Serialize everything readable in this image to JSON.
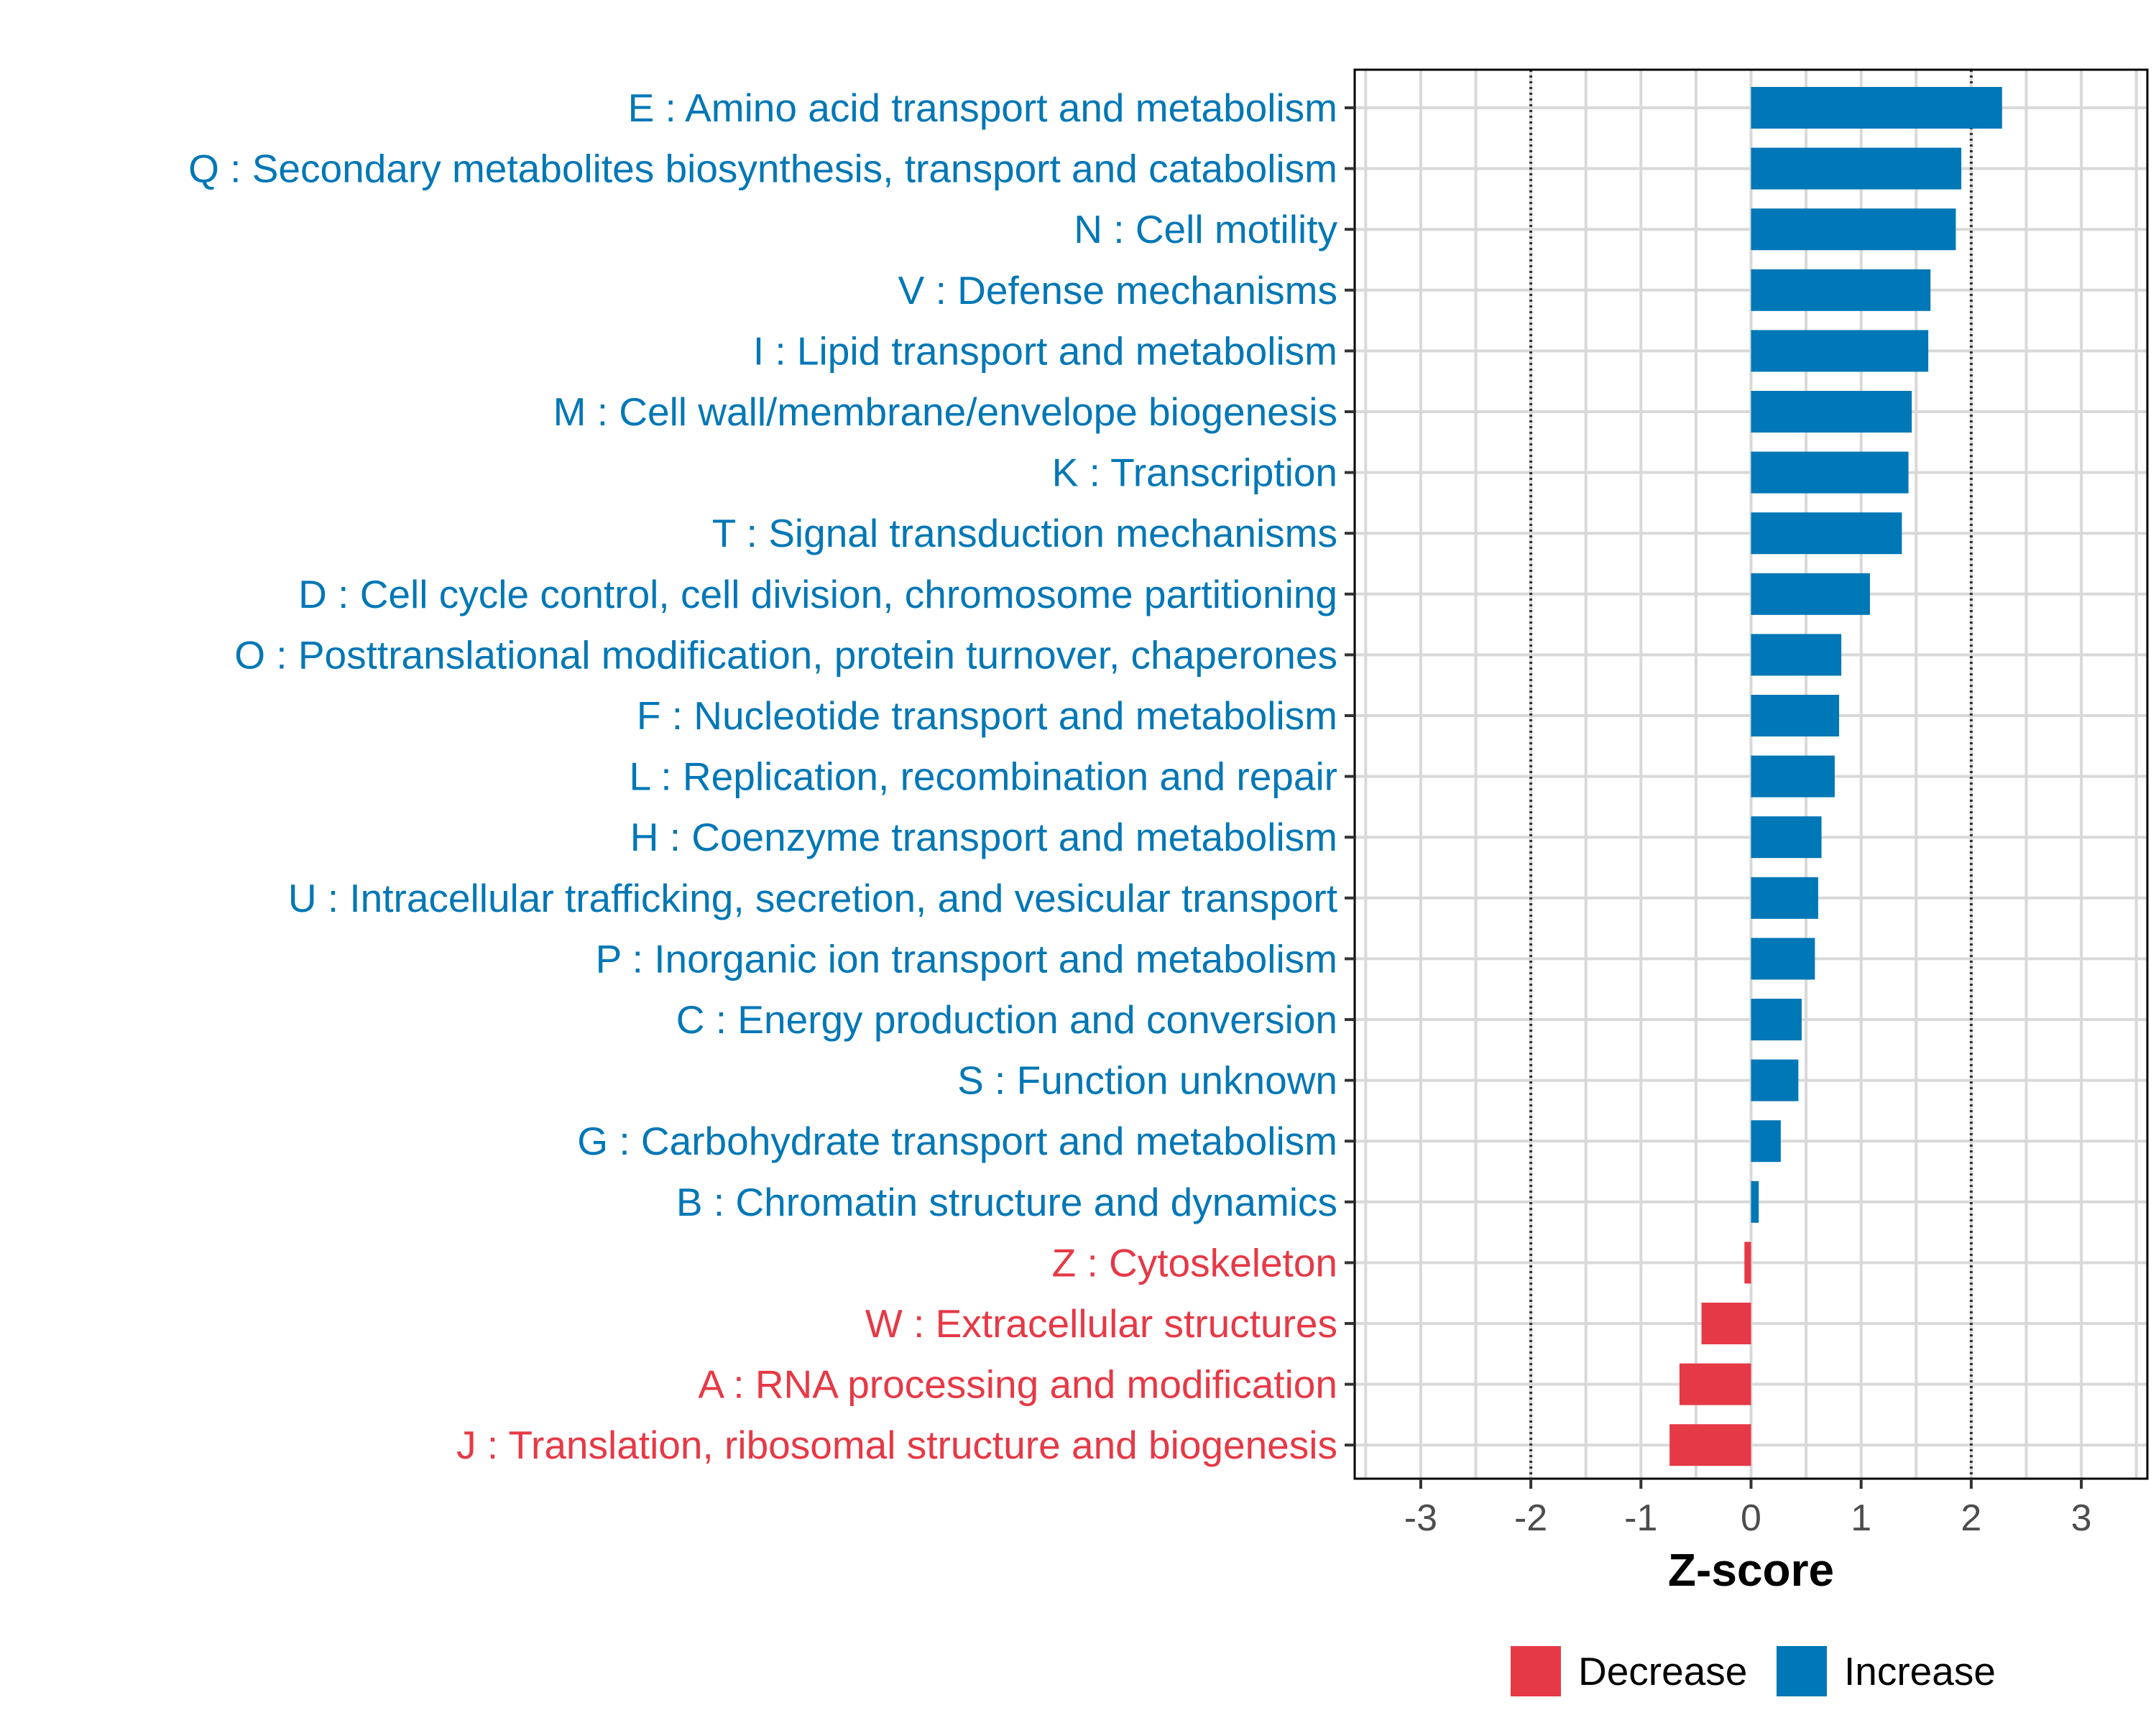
{
  "colors": {
    "increase": "#0077B6",
    "decrease": "#E63946",
    "grid": "#D9D9D9",
    "panel_border": "#000000",
    "threshold_line": "#333333",
    "tick_text": "#4D4D4D"
  },
  "chart_data": {
    "type": "bar",
    "orientation": "horizontal",
    "xlabel": "Z-score",
    "xlim": [
      -3.6,
      3.6
    ],
    "xticks": [
      -3,
      -2,
      -1,
      0,
      1,
      2,
      3
    ],
    "thresholds": [
      -2,
      2
    ],
    "grid": true,
    "legend_position": "bottom",
    "legend": [
      {
        "label": "Decrease",
        "color_key": "decrease"
      },
      {
        "label": "Increase",
        "color_key": "increase"
      }
    ],
    "categories": [
      "E : Amino acid transport and metabolism",
      "Q : Secondary metabolites biosynthesis, transport and catabolism",
      "N : Cell motility",
      "V : Defense mechanisms",
      "I : Lipid transport and metabolism",
      "M : Cell wall/membrane/envelope biogenesis",
      "K : Transcription",
      "T : Signal transduction mechanisms",
      "D : Cell cycle control, cell division, chromosome partitioning",
      "O : Posttranslational modification, protein turnover, chaperones",
      "F : Nucleotide transport and metabolism",
      "L : Replication, recombination and repair",
      "H : Coenzyme transport and metabolism",
      "U : Intracellular trafficking, secretion, and vesicular transport",
      "P : Inorganic ion transport and metabolism",
      "C : Energy production and conversion",
      "S : Function unknown",
      "G : Carbohydrate transport and metabolism",
      "B : Chromatin structure and dynamics",
      "Z : Cytoskeleton",
      "W : Extracellular structures",
      "A : RNA processing and modification",
      "J : Translation, ribosomal structure and biogenesis"
    ],
    "values": [
      2.28,
      1.91,
      1.86,
      1.63,
      1.61,
      1.46,
      1.43,
      1.37,
      1.08,
      0.82,
      0.8,
      0.76,
      0.64,
      0.61,
      0.58,
      0.46,
      0.43,
      0.27,
      0.07,
      -0.06,
      -0.45,
      -0.65,
      -0.74
    ]
  }
}
